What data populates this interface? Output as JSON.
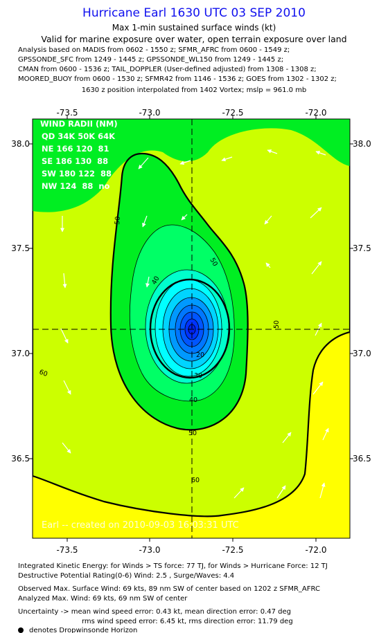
{
  "header": {
    "title": "Hurricane Earl 1630 UTC 03 SEP 2010",
    "subtitle1": "Max 1-min sustained surface winds (kt)",
    "subtitle2": "Valid for marine exposure over water, open terrain exposure over land",
    "analysis_lines": [
      "Analysis based on MADIS from 0602 - 1550 z; SFMR_AFRC from 0600 - 1549 z;",
      "GPSSONDE_SFC from 1249 - 1445 z; GPSSONDE_WL150 from 1249 - 1445 z;",
      "CMAN from 0600 - 1536 z; TAIL_DOPPLER (User-defined adjusted) from 1308 - 1308 z;",
      "MOORED_BUOY from 0600 - 1530 z; SFMR42 from 1146 - 1536 z; GOES from 1302 - 1302 z;"
    ],
    "position_line": "1630 z position interpolated from 1402 Vortex; mslp = 961.0 mb"
  },
  "map": {
    "x_ticks": [
      "-73.5",
      "-73.0",
      "-72.5",
      "-72.0"
    ],
    "y_ticks": [
      "38.0",
      "37.5",
      "37.0",
      "36.5"
    ],
    "contour_labels": [
      "50",
      "50",
      "40",
      "50",
      "60",
      "20",
      "30",
      "40",
      "50",
      "60"
    ],
    "watermark": "Earl -- created on 2010-09-03 16:03:31 UTC",
    "wind_radii": {
      "title": "WIND RADII (NM)",
      "rows": [
        "QD 34K 50K 64K",
        "NE 166 120  81",
        "SE 186 130  88",
        "SW 180 122  88",
        "NW 124  88  no"
      ]
    },
    "colors": {
      "yellow": "#ffff00",
      "yellow_green": "#ccff00",
      "green": "#00ee22",
      "green_light": "#00ff66",
      "aqua": "#00ffcc",
      "cyan": "#00ffff",
      "sky": "#00d4ff",
      "blue": "#0099ff",
      "blue_dark": "#0055ff",
      "navy": "#0022ee"
    }
  },
  "footer": {
    "ike": "Integrated Kinetic Energy:  for Winds > TS force: 77 TJ,  for Winds > Hurricane Force: 12 TJ",
    "dpr": "Destructive Potential Rating(0-6)   Wind: 2.5 , Surge/Waves: 4.4",
    "obs_max": "Observed Max. Surface Wind: 69 kts, 89 nm SW of center based on 1202 z SFMR_AFRC",
    "analyzed_max": "Analyzed Max. Wind: 69 kts, 69 nm SW of center",
    "uncertainty1": "Uncertainty -> mean wind speed error: 0.43 kt,   mean direction error: 0.47 deg",
    "uncertainty2": "rms wind speed error: 6.45 kt,         rms direction error: 11.79 deg",
    "legend": "denotes Dropwinsonde Horizon"
  }
}
